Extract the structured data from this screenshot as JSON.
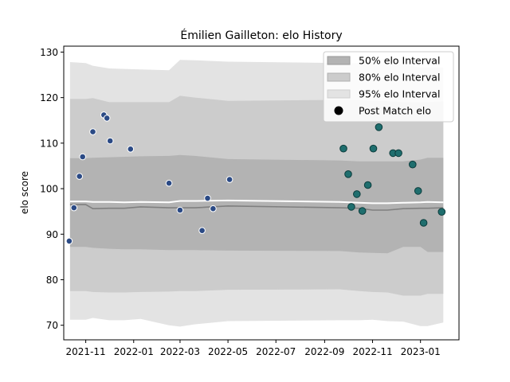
{
  "chart_data": {
    "type": "line",
    "title": "Émilien Gailleton: elo History",
    "xlabel": "",
    "ylabel": "elo score",
    "x_ticks": [
      "2021-11",
      "2022-01",
      "2022-03",
      "2022-05",
      "2022-07",
      "2022-09",
      "2022-11",
      "2023-01"
    ],
    "y_ticks": [
      70,
      80,
      90,
      100,
      110,
      120,
      130
    ],
    "xlim": [
      "2021-10-04",
      "2023-02-19"
    ],
    "ylim": [
      66.8,
      131.3
    ],
    "legend_position": "top-right",
    "legend": [
      {
        "label": "50% elo Interval",
        "color": "#b3b3b3"
      },
      {
        "label": "80% elo Interval",
        "color": "#cccccc"
      },
      {
        "label": "95% elo Interval",
        "color": "#e3e3e3"
      },
      {
        "label": "Post Match elo",
        "color": "#000000"
      }
    ],
    "bands": {
      "x": [
        "2021-10-12",
        "2021-11-01",
        "2021-11-10",
        "2021-12-01",
        "2021-12-20",
        "2022-01-10",
        "2022-02-15",
        "2022-03-01",
        "2022-03-20",
        "2022-05-01",
        "2022-09-20",
        "2022-10-15",
        "2022-11-01",
        "2022-11-20",
        "2022-12-10",
        "2023-01-01",
        "2023-01-10",
        "2023-01-30"
      ],
      "p95_low": [
        71.2,
        71.2,
        71.6,
        71.1,
        71.1,
        71.4,
        70.0,
        69.7,
        70.2,
        70.9,
        71.1,
        71.1,
        71.2,
        70.9,
        70.8,
        69.8,
        69.8,
        70.6
      ],
      "p95_high": [
        127.8,
        127.6,
        127.0,
        126.4,
        126.3,
        126.2,
        126.0,
        128.3,
        128.2,
        127.9,
        127.6,
        127.6,
        127.5,
        127.3,
        127.3,
        126.6,
        126.6,
        126.6
      ],
      "p80_low": [
        77.5,
        77.5,
        77.3,
        77.2,
        77.2,
        77.3,
        77.4,
        77.5,
        77.5,
        77.8,
        77.9,
        77.5,
        77.3,
        77.2,
        76.5,
        76.5,
        76.9,
        76.9
      ],
      "p80_high": [
        119.7,
        119.7,
        119.9,
        119.0,
        119.0,
        119.0,
        119.0,
        120.4,
        120.0,
        119.3,
        119.5,
        119.5,
        119.3,
        119.2,
        119.0,
        119.0,
        119.0,
        119.2
      ],
      "p50_low": [
        87.2,
        87.2,
        87.0,
        86.8,
        86.7,
        86.7,
        86.5,
        86.5,
        86.5,
        86.4,
        86.3,
        86.0,
        85.9,
        85.8,
        87.2,
        87.2,
        86.1,
        86.1
      ],
      "p50_high": [
        106.7,
        106.7,
        106.8,
        106.9,
        107.0,
        107.1,
        107.2,
        107.4,
        107.2,
        106.5,
        106.2,
        106.0,
        106.0,
        106.0,
        106.0,
        106.4,
        106.8,
        106.8
      ],
      "mean": [
        96.5,
        96.5,
        95.6,
        95.7,
        95.7,
        96.0,
        95.8,
        95.8,
        95.8,
        96.2,
        95.8,
        95.7,
        95.3,
        95.3,
        95.6,
        95.7,
        95.7,
        95.8
      ],
      "median": [
        97.2,
        97.2,
        97.1,
        97.1,
        97.0,
        97.1,
        97.0,
        97.3,
        97.3,
        97.4,
        97.1,
        96.9,
        96.8,
        96.8,
        96.9,
        97.0,
        97.1,
        97.0
      ]
    },
    "series": [
      {
        "name": "Post Match elo",
        "points": [
          {
            "x": "2021-10-11",
            "y": 88.5,
            "group": "a"
          },
          {
            "x": "2021-10-17",
            "y": 95.8,
            "group": "a"
          },
          {
            "x": "2021-10-24",
            "y": 102.7,
            "group": "a"
          },
          {
            "x": "2021-10-28",
            "y": 107.0,
            "group": "a"
          },
          {
            "x": "2021-11-10",
            "y": 112.5,
            "group": "a"
          },
          {
            "x": "2021-11-24",
            "y": 116.2,
            "group": "a"
          },
          {
            "x": "2021-11-28",
            "y": 115.5,
            "group": "a"
          },
          {
            "x": "2021-12-02",
            "y": 110.5,
            "group": "a"
          },
          {
            "x": "2021-12-28",
            "y": 108.7,
            "group": "a"
          },
          {
            "x": "2022-02-15",
            "y": 101.2,
            "group": "a"
          },
          {
            "x": "2022-03-01",
            "y": 95.3,
            "group": "a"
          },
          {
            "x": "2022-03-29",
            "y": 90.8,
            "group": "a"
          },
          {
            "x": "2022-04-05",
            "y": 97.9,
            "group": "a"
          },
          {
            "x": "2022-04-12",
            "y": 95.6,
            "group": "a"
          },
          {
            "x": "2022-05-03",
            "y": 102.0,
            "group": "a"
          },
          {
            "x": "2022-09-25",
            "y": 108.8,
            "group": "b"
          },
          {
            "x": "2022-10-01",
            "y": 103.2,
            "group": "b"
          },
          {
            "x": "2022-10-05",
            "y": 96.0,
            "group": "b"
          },
          {
            "x": "2022-10-12",
            "y": 98.8,
            "group": "b"
          },
          {
            "x": "2022-10-19",
            "y": 95.1,
            "group": "b"
          },
          {
            "x": "2022-10-26",
            "y": 100.8,
            "group": "b"
          },
          {
            "x": "2022-11-02",
            "y": 108.8,
            "group": "b"
          },
          {
            "x": "2022-11-09",
            "y": 113.5,
            "group": "b"
          },
          {
            "x": "2022-11-27",
            "y": 107.8,
            "group": "b"
          },
          {
            "x": "2022-12-04",
            "y": 107.8,
            "group": "b"
          },
          {
            "x": "2022-12-22",
            "y": 105.3,
            "group": "b"
          },
          {
            "x": "2022-12-29",
            "y": 99.5,
            "group": "b"
          },
          {
            "x": "2023-01-05",
            "y": 92.5,
            "group": "b"
          },
          {
            "x": "2023-01-28",
            "y": 94.9,
            "group": "b"
          }
        ]
      }
    ],
    "colors": {
      "band50": "#b3b3b3",
      "band80": "#cccccc",
      "band95": "#e3e3e3",
      "mean_line": "#808080",
      "median_line": "#ffffff",
      "point_fill_a": "#2b4a85",
      "point_fill_b": "#1f6e6e",
      "point_edge_a": "#ffffff",
      "point_edge_b": "#0b3c3c"
    }
  }
}
